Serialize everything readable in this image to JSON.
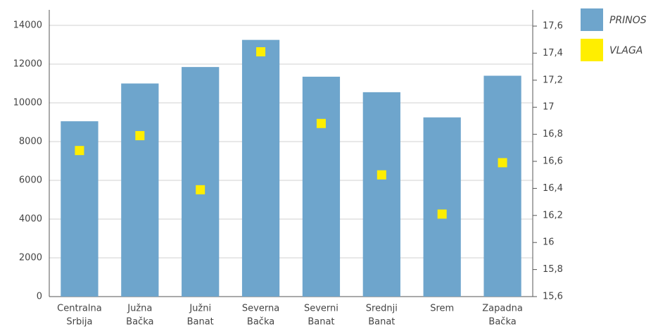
{
  "chart_data": {
    "type": "bar",
    "categories": [
      [
        "Centralna",
        "Srbija"
      ],
      [
        "Južna",
        "Bačka"
      ],
      [
        "Južni",
        "Banat"
      ],
      [
        "Severna",
        "Bačka"
      ],
      [
        "Severni",
        "Banat"
      ],
      [
        "Srednji",
        "Banat"
      ],
      [
        "Srem"
      ],
      [
        "Zapadna",
        "Bačka"
      ]
    ],
    "series": [
      {
        "name": "PRINOS",
        "color": "#6ea5cc",
        "type": "bar",
        "values": [
          9050,
          11000,
          11850,
          13250,
          11350,
          10550,
          9250,
          11400
        ]
      },
      {
        "name": "VLAGA",
        "color": "#ffee00",
        "type": "scatter",
        "axis": "y2",
        "values": [
          16.68,
          16.79,
          16.39,
          17.41,
          16.88,
          16.5,
          16.21,
          16.59
        ]
      }
    ],
    "ylim": [
      0,
      14800
    ],
    "yticks": [
      0,
      2000,
      4000,
      6000,
      8000,
      10000,
      12000,
      14000
    ],
    "y2lim": [
      15.6,
      17.72
    ],
    "y2ticks": [
      {
        "value": 15.6,
        "label": "15,6"
      },
      {
        "value": 15.8,
        "label": "15,8"
      },
      16,
      {
        "value": 16.2,
        "label": "16,2"
      },
      {
        "value": 16.4,
        "label": "16,4"
      },
      {
        "value": 16.6,
        "label": "16,6"
      },
      {
        "value": 16.8,
        "label": "16,8"
      },
      17,
      {
        "value": 17.2,
        "label": "17,2"
      },
      {
        "value": 17.4,
        "label": "17,4"
      },
      {
        "value": 17.6,
        "label": "17,6"
      }
    ],
    "grid": true,
    "legend": "right"
  }
}
